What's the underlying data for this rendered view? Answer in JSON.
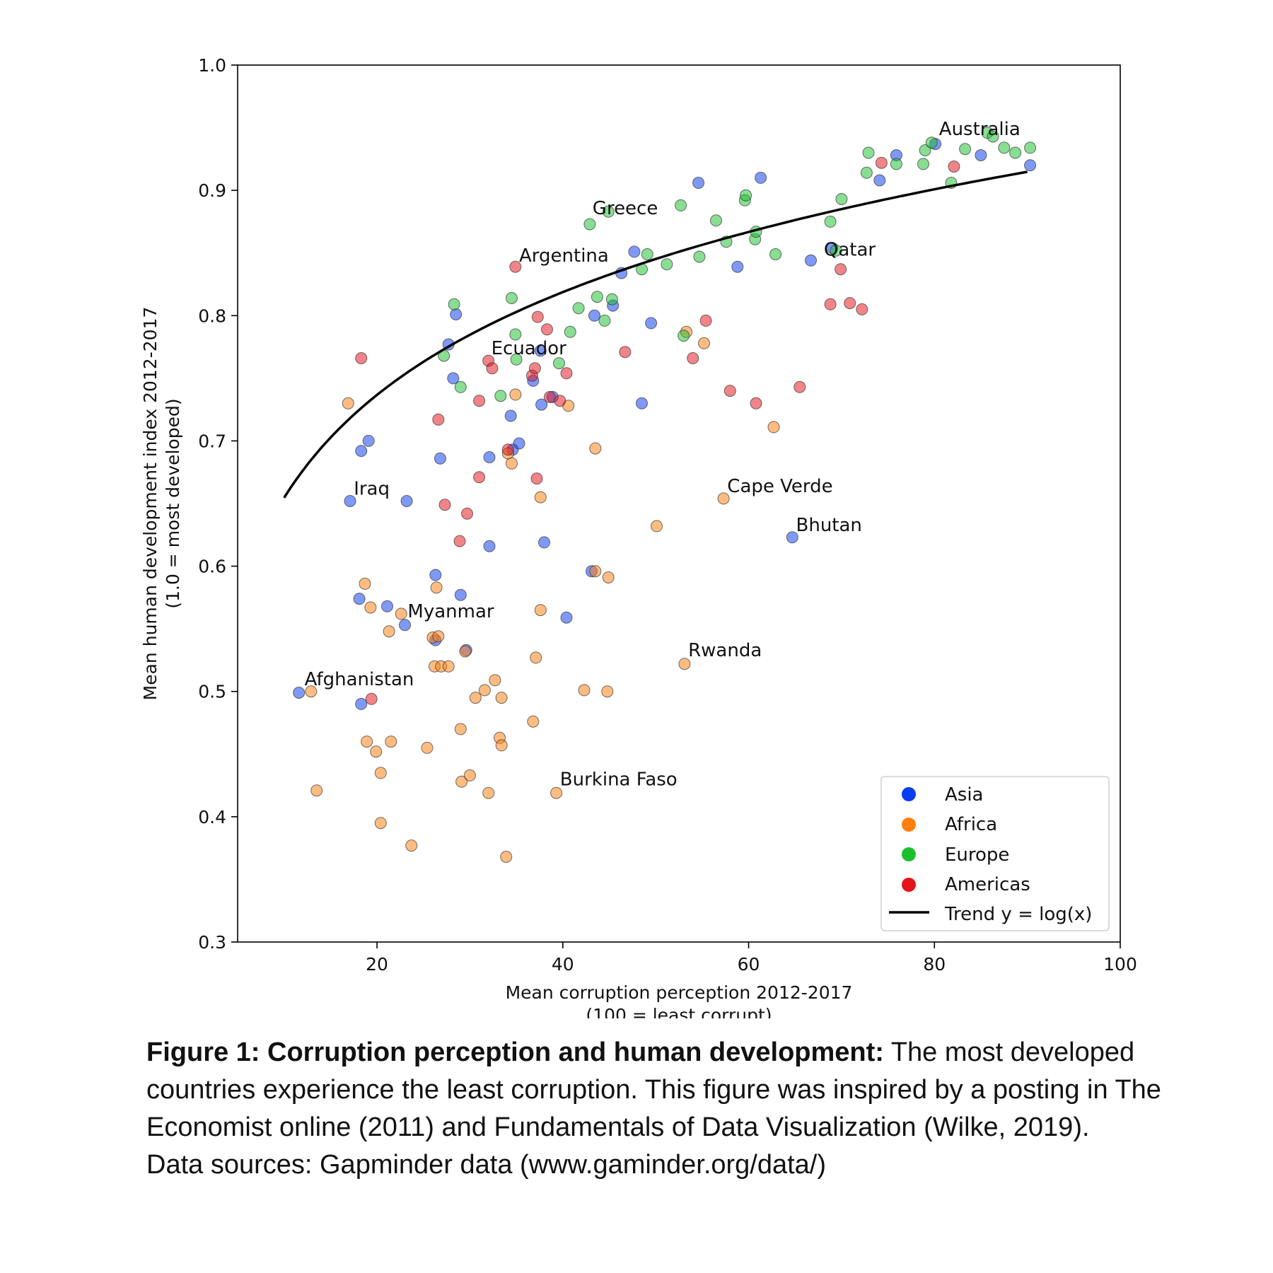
{
  "chart_data": {
    "type": "scatter",
    "xlabel": [
      "Mean corruption perception 2012-2017",
      "(100 = least corrupt)"
    ],
    "ylabel": [
      "Mean human development index 2012-2017",
      "(1.0 = most developed)"
    ],
    "xlim": [
      5,
      100
    ],
    "ylim": [
      0.3,
      1.0
    ],
    "xticks": [
      20,
      40,
      60,
      80,
      100
    ],
    "yticks": [
      "0.3",
      "0.4",
      "0.5",
      "0.6",
      "0.7",
      "0.8",
      "0.9",
      "1.0"
    ],
    "legend_position": "bottom-right",
    "grid": false,
    "colors": {
      "Asia": "#0a3cf0",
      "Africa": "#ff7f0e",
      "Europe": "#1bbf2e",
      "Americas": "#e4141b",
      "trend": "#000000"
    },
    "series": [
      {
        "name": "Asia",
        "points": [
          [
            11.6,
            0.499
          ],
          [
            17.1,
            0.652
          ],
          [
            18.3,
            0.692
          ],
          [
            19.1,
            0.7
          ],
          [
            23.2,
            0.652
          ],
          [
            18.1,
            0.574
          ],
          [
            21.1,
            0.568
          ],
          [
            23.0,
            0.553
          ],
          [
            18.3,
            0.49
          ],
          [
            26.3,
            0.593
          ],
          [
            26.3,
            0.541
          ],
          [
            29.0,
            0.577
          ],
          [
            29.6,
            0.533
          ],
          [
            26.8,
            0.686
          ],
          [
            27.7,
            0.777
          ],
          [
            28.5,
            0.801
          ],
          [
            28.2,
            0.75
          ],
          [
            32.1,
            0.687
          ],
          [
            32.1,
            0.616
          ],
          [
            34.4,
            0.72
          ],
          [
            35.3,
            0.698
          ],
          [
            34.6,
            0.693
          ],
          [
            36.8,
            0.748
          ],
          [
            37.6,
            0.772
          ],
          [
            38.0,
            0.619
          ],
          [
            37.7,
            0.729
          ],
          [
            38.9,
            0.735
          ],
          [
            40.4,
            0.559
          ],
          [
            43.1,
            0.596
          ],
          [
            43.4,
            0.8
          ],
          [
            45.4,
            0.808
          ],
          [
            46.3,
            0.834
          ],
          [
            47.7,
            0.851
          ],
          [
            48.5,
            0.73
          ],
          [
            49.5,
            0.794
          ],
          [
            54.6,
            0.906
          ],
          [
            58.8,
            0.839
          ],
          [
            61.3,
            0.91
          ],
          [
            64.7,
            0.623
          ],
          [
            66.7,
            0.844
          ],
          [
            69.0,
            0.854
          ],
          [
            74.1,
            0.908
          ],
          [
            75.9,
            0.928
          ],
          [
            80.1,
            0.937
          ],
          [
            85.0,
            0.928
          ],
          [
            90.3,
            0.92
          ]
        ]
      },
      {
        "name": "Africa",
        "points": [
          [
            12.9,
            0.5
          ],
          [
            13.5,
            0.421
          ],
          [
            16.9,
            0.73
          ],
          [
            18.7,
            0.586
          ],
          [
            19.3,
            0.567
          ],
          [
            18.9,
            0.46
          ],
          [
            19.9,
            0.452
          ],
          [
            20.4,
            0.435
          ],
          [
            20.4,
            0.395
          ],
          [
            21.3,
            0.548
          ],
          [
            21.5,
            0.46
          ],
          [
            22.6,
            0.562
          ],
          [
            23.7,
            0.377
          ],
          [
            25.4,
            0.455
          ],
          [
            26.0,
            0.543
          ],
          [
            26.2,
            0.52
          ],
          [
            26.4,
            0.583
          ],
          [
            26.6,
            0.544
          ],
          [
            26.9,
            0.52
          ],
          [
            27.7,
            0.52
          ],
          [
            29.0,
            0.47
          ],
          [
            29.1,
            0.428
          ],
          [
            29.5,
            0.532
          ],
          [
            30.0,
            0.433
          ],
          [
            30.6,
            0.495
          ],
          [
            31.6,
            0.501
          ],
          [
            32.0,
            0.419
          ],
          [
            32.7,
            0.509
          ],
          [
            33.2,
            0.463
          ],
          [
            33.4,
            0.495
          ],
          [
            33.4,
            0.457
          ],
          [
            33.9,
            0.368
          ],
          [
            34.1,
            0.69
          ],
          [
            34.5,
            0.682
          ],
          [
            34.9,
            0.737
          ],
          [
            36.8,
            0.476
          ],
          [
            37.1,
            0.527
          ],
          [
            37.6,
            0.565
          ],
          [
            37.6,
            0.655
          ],
          [
            40.6,
            0.728
          ],
          [
            39.3,
            0.419
          ],
          [
            42.3,
            0.501
          ],
          [
            43.5,
            0.596
          ],
          [
            43.5,
            0.694
          ],
          [
            44.8,
            0.5
          ],
          [
            44.9,
            0.591
          ],
          [
            50.1,
            0.632
          ],
          [
            53.1,
            0.522
          ],
          [
            53.3,
            0.787
          ],
          [
            55.2,
            0.778
          ],
          [
            57.3,
            0.654
          ],
          [
            62.7,
            0.711
          ]
        ]
      },
      {
        "name": "Europe",
        "points": [
          [
            27.2,
            0.768
          ],
          [
            28.3,
            0.809
          ],
          [
            29.0,
            0.743
          ],
          [
            33.3,
            0.736
          ],
          [
            34.5,
            0.814
          ],
          [
            34.9,
            0.785
          ],
          [
            35.0,
            0.765
          ],
          [
            39.6,
            0.762
          ],
          [
            40.8,
            0.787
          ],
          [
            41.7,
            0.806
          ],
          [
            42.9,
            0.873
          ],
          [
            43.7,
            0.815
          ],
          [
            44.5,
            0.796
          ],
          [
            44.9,
            0.883
          ],
          [
            45.3,
            0.813
          ],
          [
            48.5,
            0.837
          ],
          [
            49.1,
            0.849
          ],
          [
            51.2,
            0.841
          ],
          [
            52.7,
            0.888
          ],
          [
            53.0,
            0.784
          ],
          [
            54.7,
            0.847
          ],
          [
            56.5,
            0.876
          ],
          [
            57.6,
            0.859
          ],
          [
            59.6,
            0.892
          ],
          [
            59.7,
            0.896
          ],
          [
            60.7,
            0.861
          ],
          [
            60.8,
            0.867
          ],
          [
            62.9,
            0.849
          ],
          [
            68.8,
            0.875
          ],
          [
            69.4,
            0.852
          ],
          [
            70.0,
            0.893
          ],
          [
            72.7,
            0.914
          ],
          [
            72.9,
            0.93
          ],
          [
            75.9,
            0.921
          ],
          [
            78.8,
            0.921
          ],
          [
            79.0,
            0.932
          ],
          [
            79.7,
            0.938
          ],
          [
            81.8,
            0.906
          ],
          [
            83.3,
            0.933
          ],
          [
            85.7,
            0.946
          ],
          [
            86.3,
            0.943
          ],
          [
            87.5,
            0.934
          ],
          [
            88.7,
            0.93
          ],
          [
            90.3,
            0.934
          ]
        ]
      },
      {
        "name": "Americas",
        "points": [
          [
            18.3,
            0.766
          ],
          [
            19.4,
            0.494
          ],
          [
            26.6,
            0.717
          ],
          [
            27.3,
            0.649
          ],
          [
            28.9,
            0.62
          ],
          [
            29.7,
            0.642
          ],
          [
            31.0,
            0.671
          ],
          [
            31.0,
            0.732
          ],
          [
            32.0,
            0.764
          ],
          [
            32.4,
            0.758
          ],
          [
            34.1,
            0.693
          ],
          [
            34.9,
            0.839
          ],
          [
            36.7,
            0.752
          ],
          [
            37.0,
            0.758
          ],
          [
            37.2,
            0.67
          ],
          [
            37.3,
            0.799
          ],
          [
            38.3,
            0.789
          ],
          [
            38.6,
            0.735
          ],
          [
            39.7,
            0.732
          ],
          [
            40.4,
            0.754
          ],
          [
            46.7,
            0.771
          ],
          [
            54.0,
            0.766
          ],
          [
            55.4,
            0.796
          ],
          [
            58.0,
            0.74
          ],
          [
            60.8,
            0.73
          ],
          [
            65.5,
            0.743
          ],
          [
            68.8,
            0.809
          ],
          [
            69.9,
            0.837
          ],
          [
            70.9,
            0.81
          ],
          [
            72.2,
            0.805
          ],
          [
            74.3,
            0.922
          ],
          [
            82.1,
            0.919
          ]
        ]
      }
    ],
    "trend": {
      "label": "Trend y = log(x)",
      "x_range": [
        10,
        90
      ],
      "a": 0.1184,
      "b": 0.382
    },
    "annotations": [
      {
        "text": "Australia",
        "x": 80.5,
        "y": 0.944
      },
      {
        "text": "Greece",
        "x": 43.2,
        "y": 0.881
      },
      {
        "text": "Qatar",
        "x": 68.1,
        "y": 0.848
      },
      {
        "text": "Argentina",
        "x": 35.3,
        "y": 0.843
      },
      {
        "text": "Ecuador",
        "x": 32.3,
        "y": 0.769
      },
      {
        "text": "Iraq",
        "x": 17.5,
        "y": 0.657
      },
      {
        "text": "Cape Verde",
        "x": 57.7,
        "y": 0.659
      },
      {
        "text": "Bhutan",
        "x": 65.1,
        "y": 0.628
      },
      {
        "text": "Myanmar",
        "x": 23.3,
        "y": 0.559
      },
      {
        "text": "Rwanda",
        "x": 53.5,
        "y": 0.528
      },
      {
        "text": "Afghanistan",
        "x": 12.2,
        "y": 0.505
      },
      {
        "text": "Burkina Faso",
        "x": 39.7,
        "y": 0.425
      }
    ]
  },
  "caption": {
    "bold": "Figure 1: Corruption perception and human development:",
    "text": " The most developed countries experience the least corruption. This figure was inspired by a posting in The Economist online (2011) and Fundamentals of Data Visualization (Wilke, 2019).",
    "sources": "Data sources: Gapminder data (www.gaminder.org/data/)"
  }
}
